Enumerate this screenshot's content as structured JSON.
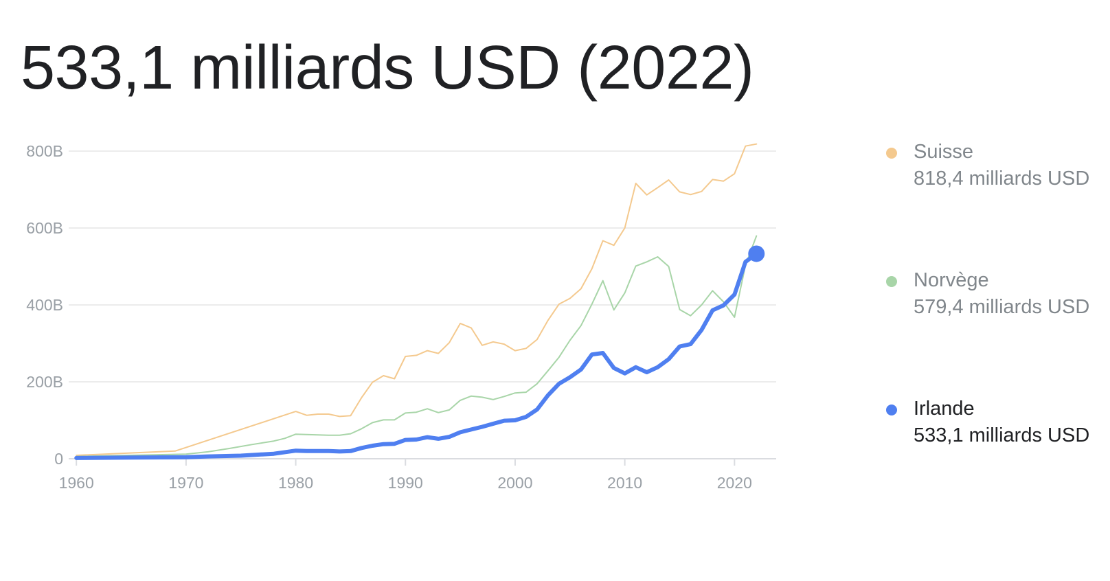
{
  "headline": "533,1 milliards USD (2022)",
  "legend": [
    {
      "name": "Suisse",
      "value": "818,4 milliards USD",
      "color": "#f4c98e",
      "active": false
    },
    {
      "name": "Norvège",
      "value": "579,4 milliards USD",
      "color": "#a8d5a8",
      "active": false
    },
    {
      "name": "Irlande",
      "value": "533,1 milliards USD",
      "color": "#4f7ff0",
      "active": true
    }
  ],
  "chart_data": {
    "type": "line",
    "x_ticks": [
      1960,
      1970,
      1980,
      1990,
      2000,
      2010,
      2020
    ],
    "x_tick_labels": [
      "1960",
      "1970",
      "1980",
      "1990",
      "2000",
      "2010",
      "2020"
    ],
    "y_ticks": [
      0,
      200,
      400,
      600,
      800
    ],
    "y_tick_labels": [
      "0",
      "200B",
      "400B",
      "600B",
      "800B"
    ],
    "xlim": [
      1959.3,
      2023.8
    ],
    "ylim": [
      0,
      800
    ],
    "y_unit": "milliards USD",
    "grid": true,
    "legend_position": "right",
    "highlight": {
      "series": "Irlande",
      "x": 2022,
      "y": 533.1
    },
    "series": [
      {
        "name": "Suisse",
        "color": "#f4c98e",
        "stroke_width": 2,
        "points": [
          [
            1960,
            9
          ],
          [
            1969,
            20
          ],
          [
            1980,
            123
          ],
          [
            1981,
            113
          ],
          [
            1982,
            116
          ],
          [
            1983,
            116
          ],
          [
            1984,
            110
          ],
          [
            1985,
            112
          ],
          [
            1986,
            159
          ],
          [
            1987,
            199
          ],
          [
            1988,
            216
          ],
          [
            1989,
            208
          ],
          [
            1990,
            266
          ],
          [
            1991,
            269
          ],
          [
            1992,
            281
          ],
          [
            1993,
            274
          ],
          [
            1994,
            302
          ],
          [
            1995,
            352
          ],
          [
            1996,
            340
          ],
          [
            1997,
            295
          ],
          [
            1998,
            304
          ],
          [
            1999,
            298
          ],
          [
            2000,
            281
          ],
          [
            2001,
            287
          ],
          [
            2002,
            310
          ],
          [
            2003,
            360
          ],
          [
            2004,
            402
          ],
          [
            2005,
            417
          ],
          [
            2006,
            442
          ],
          [
            2007,
            494
          ],
          [
            2008,
            567
          ],
          [
            2009,
            555
          ],
          [
            2010,
            600
          ],
          [
            2011,
            716
          ],
          [
            2012,
            686
          ],
          [
            2013,
            705
          ],
          [
            2014,
            725
          ],
          [
            2015,
            694
          ],
          [
            2016,
            687
          ],
          [
            2017,
            695
          ],
          [
            2018,
            726
          ],
          [
            2019,
            722
          ],
          [
            2020,
            741
          ],
          [
            2021,
            813
          ],
          [
            2022,
            818.4
          ]
        ]
      },
      {
        "name": "Norvège",
        "color": "#a8d5a8",
        "stroke_width": 2,
        "points": [
          [
            1960,
            6
          ],
          [
            1970,
            12
          ],
          [
            1972,
            18
          ],
          [
            1974,
            27
          ],
          [
            1976,
            37
          ],
          [
            1978,
            46
          ],
          [
            1979,
            53
          ],
          [
            1980,
            64
          ],
          [
            1981,
            63
          ],
          [
            1982,
            62
          ],
          [
            1983,
            61
          ],
          [
            1984,
            61
          ],
          [
            1985,
            65
          ],
          [
            1986,
            78
          ],
          [
            1987,
            94
          ],
          [
            1988,
            101
          ],
          [
            1989,
            101
          ],
          [
            1990,
            119
          ],
          [
            1991,
            121
          ],
          [
            1992,
            130
          ],
          [
            1993,
            120
          ],
          [
            1994,
            127
          ],
          [
            1995,
            152
          ],
          [
            1996,
            163
          ],
          [
            1997,
            160
          ],
          [
            1998,
            154
          ],
          [
            1999,
            162
          ],
          [
            2000,
            171
          ],
          [
            2001,
            173
          ],
          [
            2002,
            195
          ],
          [
            2003,
            229
          ],
          [
            2004,
            264
          ],
          [
            2005,
            308
          ],
          [
            2006,
            346
          ],
          [
            2007,
            402
          ],
          [
            2008,
            463
          ],
          [
            2009,
            387
          ],
          [
            2010,
            431
          ],
          [
            2011,
            501
          ],
          [
            2012,
            512
          ],
          [
            2013,
            525
          ],
          [
            2014,
            500
          ],
          [
            2015,
            388
          ],
          [
            2016,
            372
          ],
          [
            2017,
            400
          ],
          [
            2018,
            437
          ],
          [
            2019,
            408
          ],
          [
            2020,
            368
          ],
          [
            2021,
            503
          ],
          [
            2022,
            579.4
          ]
        ]
      },
      {
        "name": "Irlande",
        "color": "#4f7ff0",
        "stroke_width": 6,
        "points": [
          [
            1960,
            2
          ],
          [
            1965,
            3
          ],
          [
            1970,
            4
          ],
          [
            1972,
            6
          ],
          [
            1975,
            8
          ],
          [
            1978,
            13
          ],
          [
            1980,
            21
          ],
          [
            1981,
            20
          ],
          [
            1982,
            20
          ],
          [
            1983,
            20
          ],
          [
            1984,
            19
          ],
          [
            1985,
            20
          ],
          [
            1986,
            28
          ],
          [
            1987,
            34
          ],
          [
            1988,
            38
          ],
          [
            1989,
            39
          ],
          [
            1990,
            49
          ],
          [
            1991,
            50
          ],
          [
            1992,
            56
          ],
          [
            1993,
            52
          ],
          [
            1994,
            57
          ],
          [
            1995,
            69
          ],
          [
            1996,
            76
          ],
          [
            1997,
            83
          ],
          [
            1998,
            91
          ],
          [
            1999,
            99
          ],
          [
            2000,
            100
          ],
          [
            2001,
            109
          ],
          [
            2002,
            128
          ],
          [
            2003,
            165
          ],
          [
            2004,
            195
          ],
          [
            2005,
            212
          ],
          [
            2006,
            232
          ],
          [
            2007,
            271
          ],
          [
            2008,
            275
          ],
          [
            2009,
            236
          ],
          [
            2010,
            222
          ],
          [
            2011,
            238
          ],
          [
            2012,
            225
          ],
          [
            2013,
            238
          ],
          [
            2014,
            259
          ],
          [
            2015,
            292
          ],
          [
            2016,
            298
          ],
          [
            2017,
            335
          ],
          [
            2018,
            386
          ],
          [
            2019,
            399
          ],
          [
            2020,
            427
          ],
          [
            2021,
            512
          ],
          [
            2022,
            533.1
          ]
        ]
      }
    ]
  }
}
